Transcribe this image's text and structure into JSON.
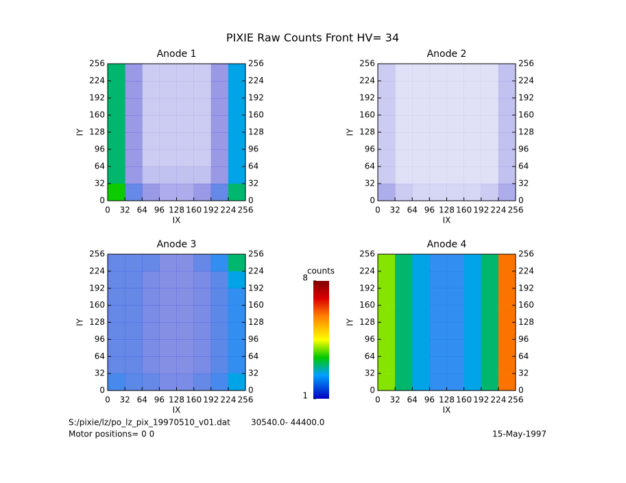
{
  "title": "PIXIE Raw Counts Front HV= 34",
  "chart_data": [
    {
      "type": "heatmap",
      "title": "Anode 1",
      "xlabel": "IX",
      "ylabel": "IY",
      "xlim": [
        0,
        256
      ],
      "ylim": [
        0,
        256
      ],
      "xticks": [
        0,
        32,
        64,
        96,
        128,
        160,
        192,
        224,
        256
      ],
      "yticks": [
        0,
        32,
        64,
        96,
        128,
        160,
        192,
        224,
        256
      ],
      "values": [
        [
          3,
          1,
          0.5,
          0.5,
          0.5,
          0.5,
          1,
          2.5
        ],
        [
          3,
          1,
          0.5,
          0.5,
          0.5,
          0.5,
          1,
          2.5
        ],
        [
          3,
          1,
          0.5,
          0.5,
          0.5,
          0.5,
          1,
          2.5
        ],
        [
          3,
          1,
          0.5,
          0.5,
          0.5,
          0.5,
          1,
          2.5
        ],
        [
          3,
          1,
          0.5,
          0.5,
          0.5,
          0.5,
          1,
          2.5
        ],
        [
          3,
          1,
          0.5,
          0.5,
          0.5,
          0.5,
          1,
          2.5
        ],
        [
          3,
          1,
          0.6,
          0.6,
          0.6,
          0.6,
          1,
          2.5
        ],
        [
          3.5,
          1.5,
          1,
          0.8,
          0.8,
          1,
          1.5,
          3
        ]
      ]
    },
    {
      "type": "heatmap",
      "title": "Anode 2",
      "xlabel": "IX",
      "ylabel": "IY",
      "xlim": [
        0,
        256
      ],
      "ylim": [
        0,
        256
      ],
      "xticks": [
        0,
        32,
        64,
        96,
        128,
        160,
        192,
        224,
        256
      ],
      "yticks": [
        0,
        32,
        64,
        96,
        128,
        160,
        192,
        224,
        256
      ],
      "values": [
        [
          0.5,
          0.3,
          0.3,
          0.3,
          0.3,
          0.3,
          0.3,
          0.6
        ],
        [
          0.5,
          0.3,
          0.3,
          0.3,
          0.3,
          0.3,
          0.3,
          0.6
        ],
        [
          0.5,
          0.3,
          0.3,
          0.3,
          0.3,
          0.3,
          0.3,
          0.6
        ],
        [
          0.5,
          0.3,
          0.3,
          0.3,
          0.3,
          0.3,
          0.3,
          0.6
        ],
        [
          0.5,
          0.3,
          0.3,
          0.3,
          0.3,
          0.3,
          0.3,
          0.6
        ],
        [
          0.5,
          0.3,
          0.3,
          0.3,
          0.3,
          0.3,
          0.3,
          0.6
        ],
        [
          0.5,
          0.3,
          0.3,
          0.3,
          0.3,
          0.3,
          0.3,
          0.6
        ],
        [
          0.8,
          0.5,
          0.4,
          0.4,
          0.4,
          0.4,
          0.5,
          0.8
        ]
      ]
    },
    {
      "type": "heatmap",
      "title": "Anode 3",
      "xlabel": "IX",
      "ylabel": "IY",
      "xlim": [
        0,
        256
      ],
      "ylim": [
        0,
        256
      ],
      "xticks": [
        0,
        32,
        64,
        96,
        128,
        160,
        192,
        224,
        256
      ],
      "yticks": [
        0,
        32,
        64,
        96,
        128,
        160,
        192,
        224,
        256
      ],
      "values": [
        [
          1.5,
          1.5,
          1.5,
          1.2,
          1.2,
          1.5,
          2,
          3
        ],
        [
          1.5,
          1.5,
          1.3,
          1.2,
          1.2,
          1.3,
          1.6,
          2.5
        ],
        [
          1.5,
          1.5,
          1.3,
          1.2,
          1.2,
          1.3,
          1.6,
          2
        ],
        [
          1.5,
          1.5,
          1.3,
          1.2,
          1.2,
          1.3,
          1.6,
          2
        ],
        [
          1.5,
          1.5,
          1.3,
          1.2,
          1.2,
          1.3,
          1.6,
          2
        ],
        [
          1.5,
          1.5,
          1.3,
          1.2,
          1.2,
          1.3,
          1.6,
          2
        ],
        [
          1.5,
          1.5,
          1.3,
          1.2,
          1.2,
          1.3,
          1.6,
          2
        ],
        [
          1.8,
          1.6,
          1.5,
          1.3,
          1.3,
          1.5,
          1.8,
          2.5
        ]
      ]
    },
    {
      "type": "heatmap",
      "title": "Anode 4",
      "xlabel": "IX",
      "ylabel": "IY",
      "xlim": [
        0,
        256
      ],
      "ylim": [
        0,
        256
      ],
      "xticks": [
        0,
        32,
        64,
        96,
        128,
        160,
        192,
        224,
        256
      ],
      "yticks": [
        0,
        32,
        64,
        96,
        128,
        160,
        192,
        224,
        256
      ],
      "values": [
        [
          4,
          3,
          2.5,
          2,
          2,
          2.5,
          3,
          6
        ],
        [
          4,
          3,
          2.5,
          2,
          2,
          2.5,
          3,
          6
        ],
        [
          4,
          3,
          2.5,
          2,
          2,
          2.5,
          3,
          6
        ],
        [
          4,
          3,
          2.5,
          2,
          2,
          2.5,
          3,
          6
        ],
        [
          4,
          3,
          2.5,
          2,
          2,
          2.5,
          3,
          6
        ],
        [
          4,
          3,
          2.5,
          2,
          2,
          2.5,
          3,
          6
        ],
        [
          4,
          3,
          2.5,
          2,
          2,
          2.5,
          3,
          6
        ],
        [
          4,
          3,
          2.5,
          2,
          2,
          2.5,
          3,
          6
        ]
      ]
    }
  ],
  "colorbar": {
    "label": "counts",
    "lim": [
      1,
      8
    ],
    "ticks": [
      1,
      8
    ]
  },
  "footer": {
    "file": "S:/pixie/lz/po_lz_pix_19970510_v01.dat",
    "range": "30540.0- 44400.0",
    "motor": "Motor positions= 0 0",
    "date": "15-May-1997"
  }
}
